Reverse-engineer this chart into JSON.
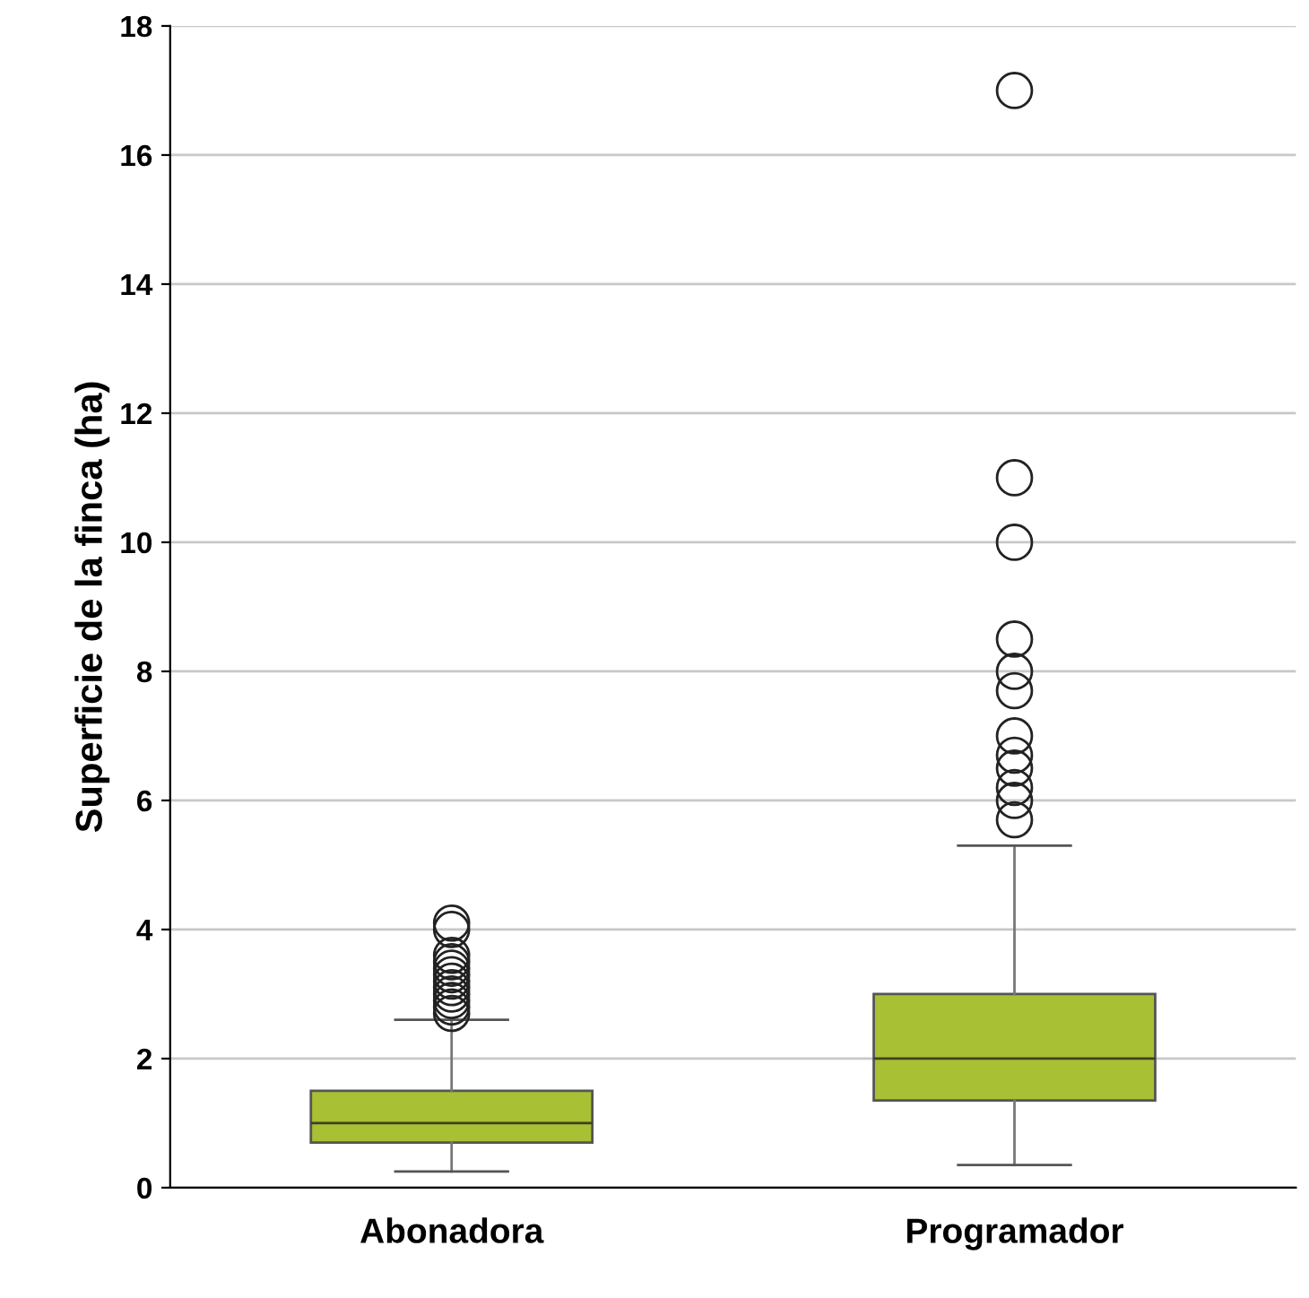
{
  "chart_data": {
    "type": "box",
    "ylabel": "Superficie de la finca (ha)",
    "categories": [
      "Abonadora",
      "Programador"
    ],
    "boxes": [
      {
        "low": 0.25,
        "q1": 0.7,
        "median": 1.0,
        "q3": 1.5,
        "high": 2.6,
        "outliers": [
          2.7,
          2.8,
          2.9,
          3.0,
          3.1,
          3.2,
          3.3,
          3.4,
          3.5,
          3.6,
          4.0,
          4.1
        ]
      },
      {
        "low": 0.35,
        "q1": 1.35,
        "median": 2.0,
        "q3": 3.0,
        "high": 5.3,
        "outliers": [
          5.7,
          6.0,
          6.2,
          6.5,
          6.7,
          7.0,
          7.7,
          8.0,
          8.5,
          10,
          11,
          17
        ]
      }
    ],
    "color": "#a8c034",
    "ylim": [
      0,
      18
    ],
    "yticks": [
      0,
      2,
      4,
      6,
      8,
      10,
      12,
      14,
      16,
      18
    ],
    "grid": "y"
  }
}
